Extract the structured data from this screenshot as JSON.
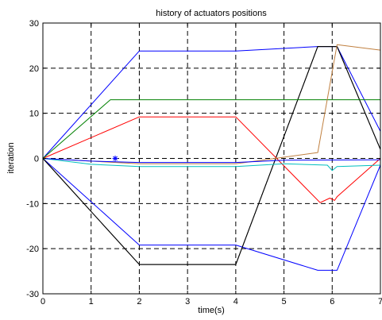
{
  "chart_data": {
    "type": "line",
    "title": "history of actuators positions",
    "xlabel": "time(s)",
    "ylabel": "iteration",
    "xlim": [
      0,
      7
    ],
    "ylim": [
      -30,
      30
    ],
    "xticks": [
      0,
      1,
      2,
      3,
      4,
      5,
      6,
      7
    ],
    "yticks": [
      -30,
      -20,
      -10,
      0,
      10,
      20,
      30
    ],
    "grid": true,
    "legend": "none",
    "series": [
      {
        "color": "#0000ff",
        "x": [
          0,
          2,
          4,
          5.7,
          6.1,
          7
        ],
        "y": [
          0,
          23.8,
          23.8,
          24.8,
          24.8,
          6
        ]
      },
      {
        "color": "#000000",
        "x": [
          0,
          2,
          4,
          5.7,
          6.1,
          7
        ],
        "y": [
          0,
          -23.5,
          -23.5,
          24.8,
          24.8,
          2
        ]
      },
      {
        "color": "#0000ff",
        "x": [
          0,
          2,
          4,
          5.7,
          6.1,
          7
        ],
        "y": [
          0,
          -19.2,
          -19.2,
          -24.8,
          -24.8,
          -1.5
        ]
      },
      {
        "color": "#000000",
        "x": [
          0,
          2,
          4,
          5.7,
          6.1,
          7
        ],
        "y": [
          0,
          -23.5,
          -23.5,
          24.8,
          24.8,
          2
        ]
      },
      {
        "color": "#ff0000",
        "x": [
          0,
          2,
          4,
          5.75,
          5.95,
          6.05,
          6.1,
          7
        ],
        "y": [
          0,
          9.2,
          9.2,
          -9.8,
          -8.8,
          -9.3,
          -8.5,
          0
        ]
      },
      {
        "color": "#008000",
        "x": [
          0,
          1.4,
          7
        ],
        "y": [
          0,
          13,
          13
        ]
      },
      {
        "color": "#c08040",
        "x": [
          0,
          2,
          4,
          5.7,
          6.1,
          7
        ],
        "y": [
          0,
          -1.2,
          -1.2,
          1.3,
          25.2,
          24
        ]
      },
      {
        "color": "#00bfbf",
        "x": [
          0,
          1,
          2,
          4,
          5,
          5.9,
          6,
          6.1,
          7
        ],
        "y": [
          0,
          -1.3,
          -1.8,
          -1.8,
          -1.2,
          -1.5,
          -2.7,
          -1.8,
          -1.5
        ]
      },
      {
        "color": "#0000ff",
        "x": [
          0,
          1,
          2,
          4,
          5,
          7
        ],
        "y": [
          0,
          -0.6,
          -0.9,
          -0.9,
          -0.4,
          -0.3
        ]
      }
    ],
    "markers": [
      {
        "x": 1.5,
        "y": 0,
        "symbol": "*",
        "color": "#0000ff"
      }
    ]
  }
}
